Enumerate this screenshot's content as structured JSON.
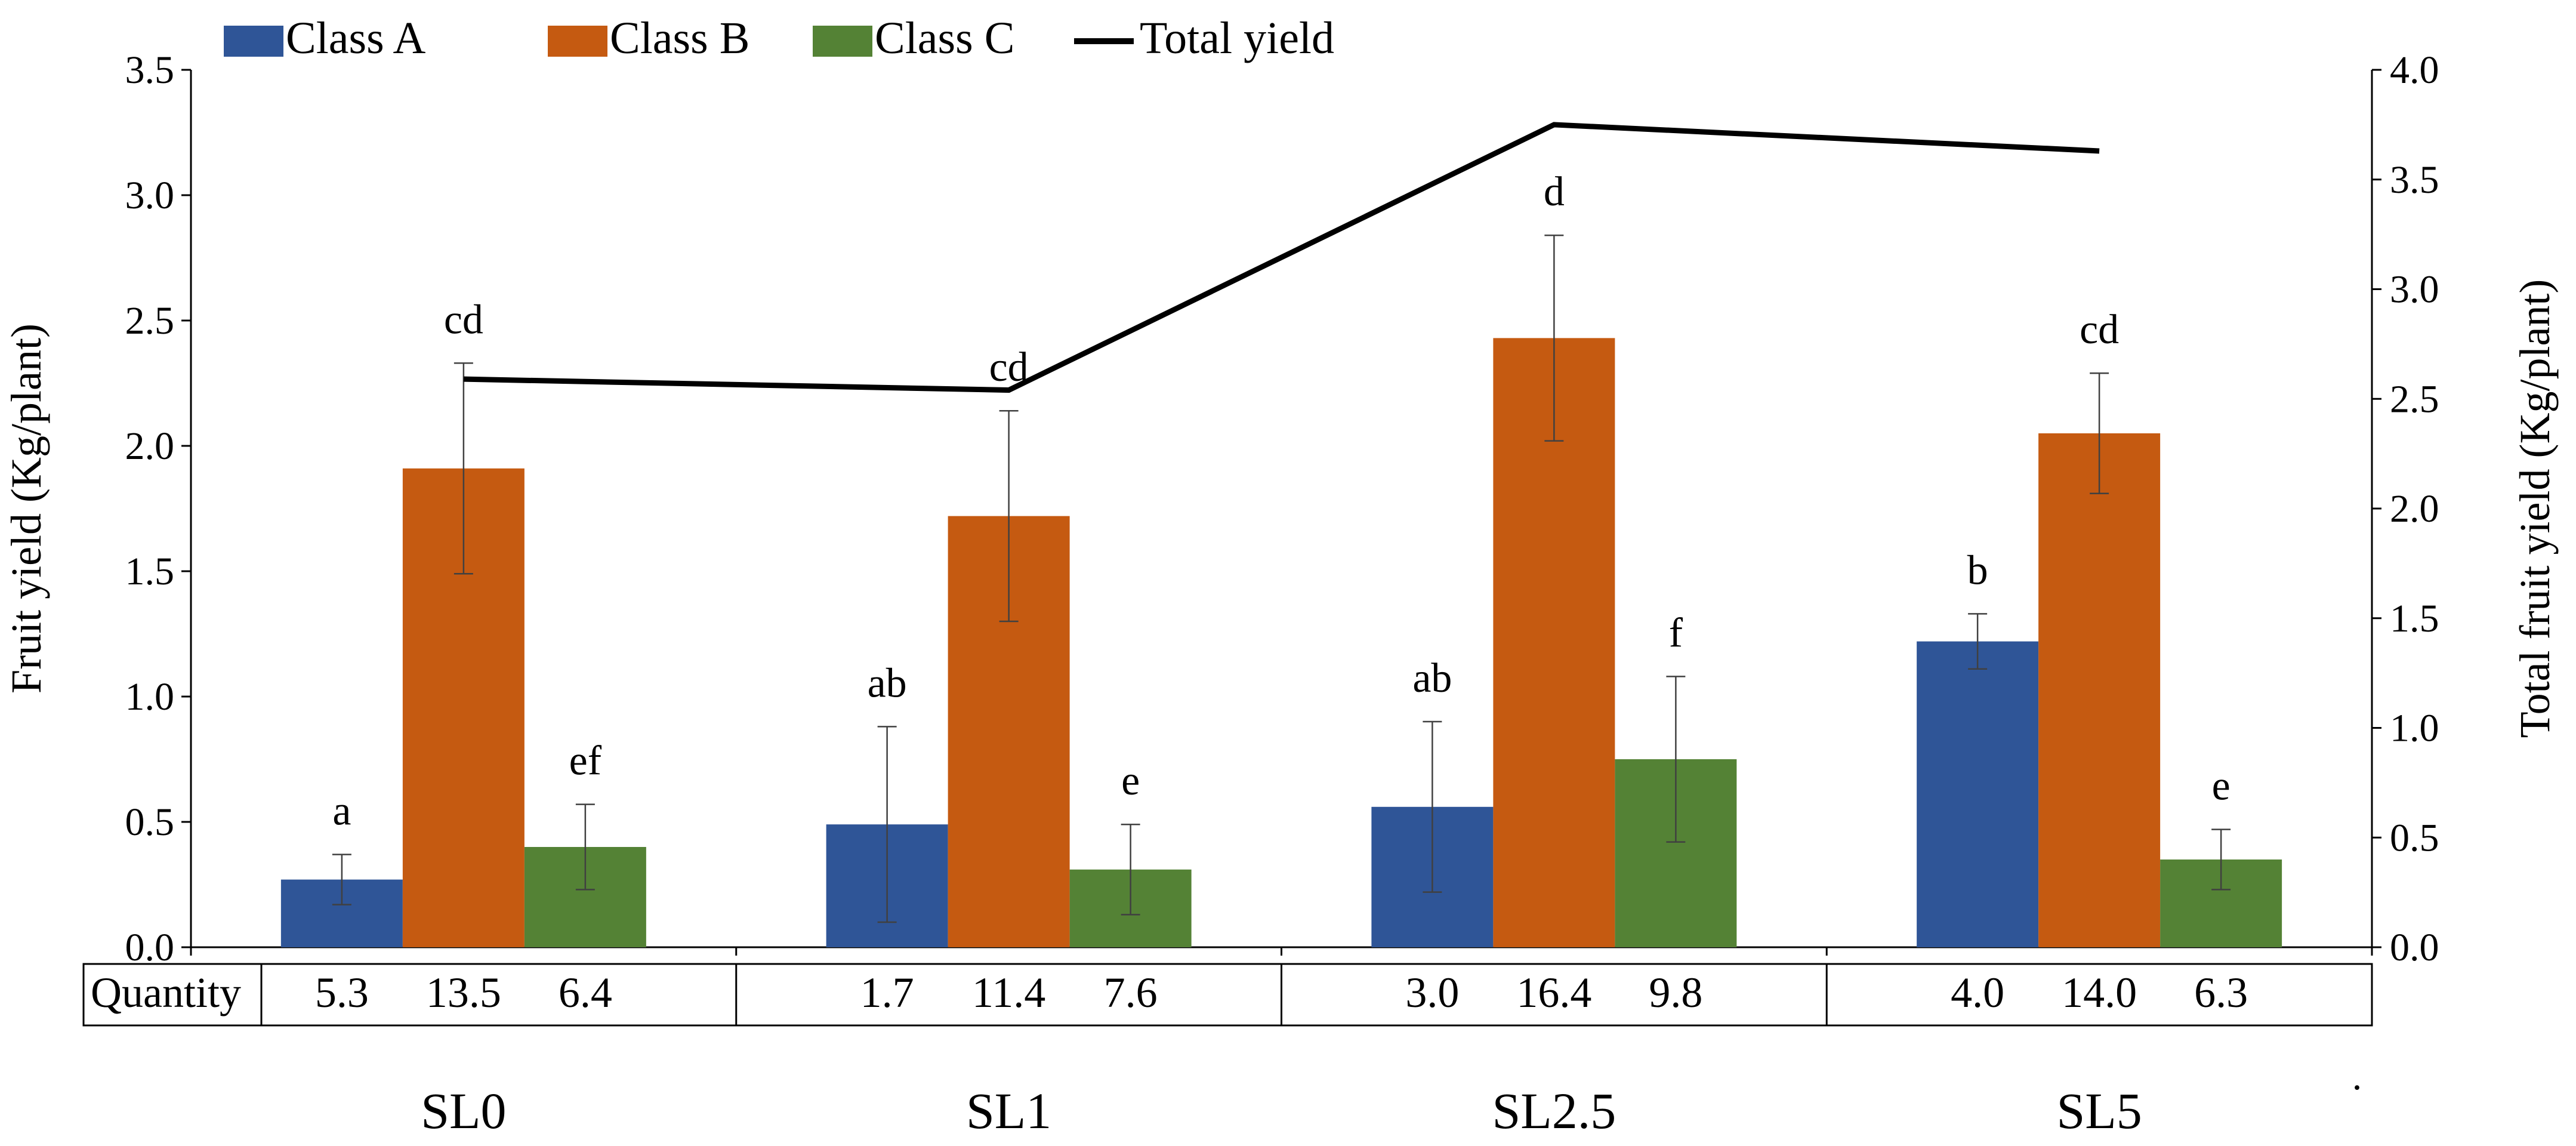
{
  "chart_data": {
    "type": "bar",
    "categories": [
      "SL0",
      "SL1",
      "SL2.5",
      "SL5"
    ],
    "series": [
      {
        "name": "Class A",
        "color": "#2F5597",
        "values": [
          0.27,
          0.49,
          0.56,
          1.22
        ],
        "errors": [
          0.1,
          0.39,
          0.34,
          0.11
        ],
        "letters": [
          "a",
          "ab",
          "ab",
          "b"
        ]
      },
      {
        "name": "Class B",
        "color": "#C55A11",
        "values": [
          1.91,
          1.72,
          2.43,
          2.05
        ],
        "errors": [
          0.42,
          0.42,
          0.41,
          0.24
        ],
        "letters": [
          "cd",
          "cd",
          "d",
          "cd"
        ]
      },
      {
        "name": "Class C",
        "color": "#548235",
        "values": [
          0.4,
          0.31,
          0.75,
          0.35
        ],
        "errors": [
          0.17,
          0.18,
          0.33,
          0.12
        ],
        "letters": [
          "ef",
          "e",
          "f",
          "e"
        ]
      }
    ],
    "line": {
      "name": "Total yield",
      "color": "#000000",
      "values": [
        2.59,
        2.54,
        3.75,
        3.63
      ]
    },
    "ylabel": "Fruit yield (Kg/plant)",
    "y2label": "Total fruit yield (Kg/plant)",
    "ylim": [
      0,
      3.5
    ],
    "y2lim": [
      0,
      4.0
    ],
    "yticks": [
      "0.0",
      "0.5",
      "1.0",
      "1.5",
      "2.0",
      "2.5",
      "3.0",
      "3.5"
    ],
    "y2ticks": [
      "0.0",
      "0.5",
      "1.0",
      "1.5",
      "2.0",
      "2.5",
      "3.0",
      "3.5",
      "4.0"
    ],
    "legend": [
      "Class A",
      "Class B",
      "Class C",
      "Total yield"
    ],
    "table": {
      "row_label": "Quantity",
      "values": [
        [
          "5.3",
          "13.5",
          "6.4"
        ],
        [
          "1.7",
          "11.4",
          "7.6"
        ],
        [
          "3.0",
          "16.4",
          "9.8"
        ],
        [
          "4.0",
          "14.0",
          "6.3"
        ]
      ]
    },
    "footnote": "."
  }
}
